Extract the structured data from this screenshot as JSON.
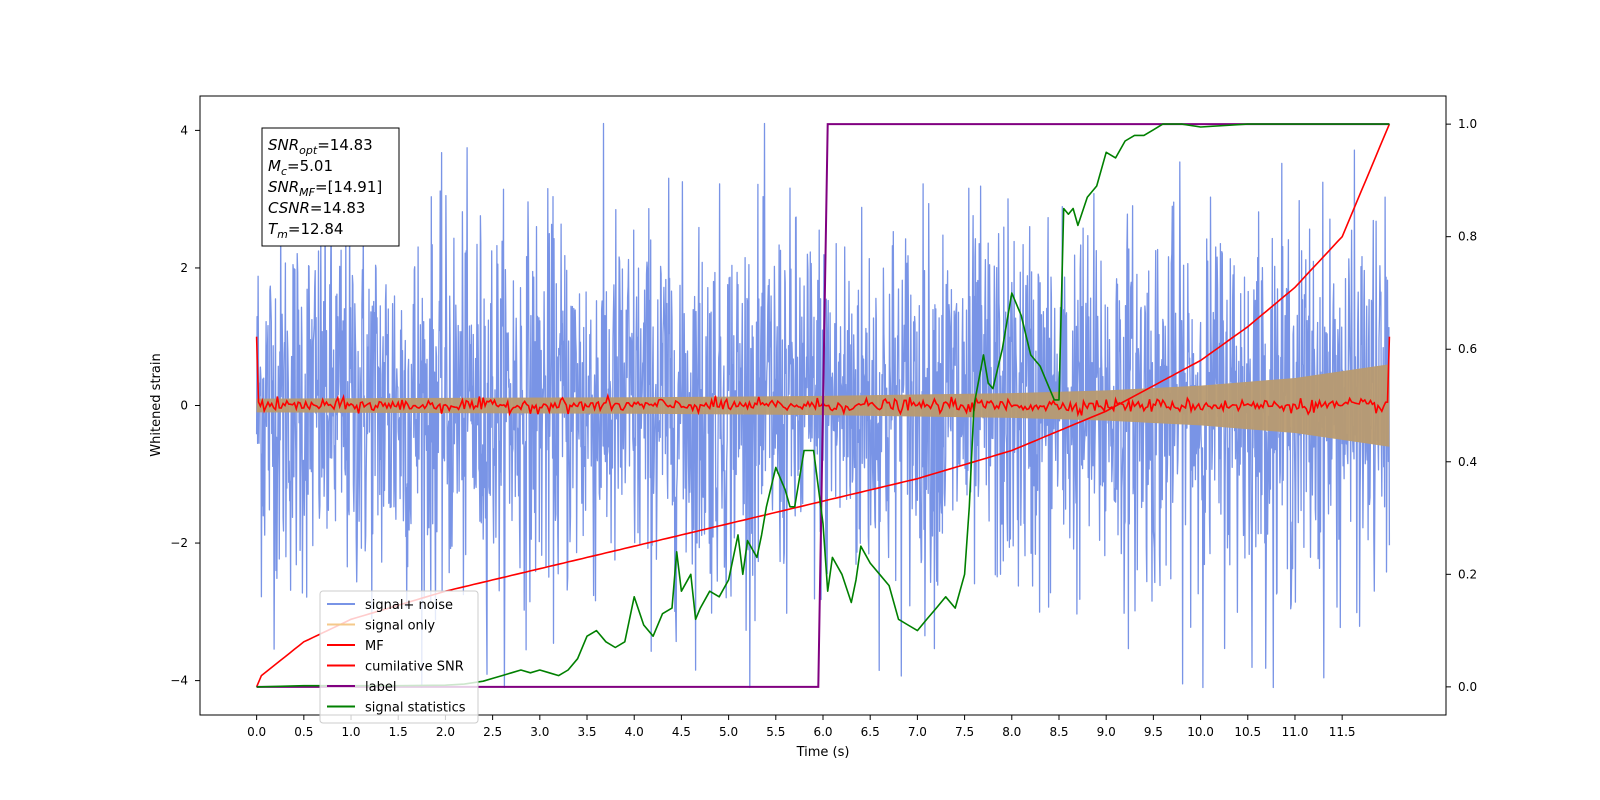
{
  "chart_data": {
    "type": "line",
    "xlabel": "Time (s)",
    "ylabel": "Whitened strain",
    "xlim": [
      -0.6,
      12.6
    ],
    "ylim": [
      -4.5,
      4.5
    ],
    "y2lim": [
      -0.05,
      1.05
    ],
    "x_ticks": [
      "0.0",
      "0.5",
      "1.0",
      "1.5",
      "2.0",
      "2.5",
      "3.0",
      "3.5",
      "4.0",
      "4.5",
      "5.0",
      "5.5",
      "6.0",
      "6.5",
      "7.0",
      "7.5",
      "8.0",
      "8.5",
      "9.0",
      "9.5",
      "10.0",
      "10.5",
      "11.0",
      "11.5"
    ],
    "y_ticks": [
      "4",
      "2",
      "0",
      "−2",
      "−4"
    ],
    "y2_ticks": [
      "1.0",
      "0.8",
      "0.6",
      "0.4",
      "0.2",
      "0.0"
    ],
    "annotation": [
      {
        "sym": "SNR",
        "sub": "opt",
        "val": "=14.83"
      },
      {
        "sym": "M",
        "sub": "c",
        "val": "=5.01"
      },
      {
        "sym": "SNR",
        "sub": "MF",
        "val": "=[14.91]"
      },
      {
        "sym": "CSNR",
        "sub": "",
        "val": "=14.83"
      },
      {
        "sym": "T",
        "sub": "m",
        "val": "=12.84"
      }
    ],
    "legend_position": "lower-left",
    "legend": [
      {
        "label": "signal+ noise",
        "color": "#7994e6"
      },
      {
        "label": "signal only",
        "color": "#f5c98a"
      },
      {
        "label": "MF",
        "color": "#ff0000"
      },
      {
        "label": "cumilative SNR",
        "color": "#ff0000"
      },
      {
        "label": "label",
        "color": "#800080"
      },
      {
        "label": "signal statistics",
        "color": "#008000"
      }
    ],
    "series": [
      {
        "name": "signal+ noise",
        "axis": "left",
        "color": "#7994e6",
        "x_range": [
          0,
          12
        ],
        "amplitude_range": [
          -4.1,
          4.1
        ],
        "description_points": 1200
      },
      {
        "name": "signal only",
        "axis": "left",
        "color": "#b89a70",
        "x_range": [
          0,
          12
        ],
        "envelope_x": [
          0,
          2,
          4,
          6,
          8,
          9,
          10,
          11,
          12
        ],
        "envelope_y": [
          0.1,
          0.11,
          0.12,
          0.14,
          0.18,
          0.22,
          0.29,
          0.4,
          0.6
        ]
      },
      {
        "name": "MF",
        "axis": "left",
        "color": "#ff0000",
        "x_range": [
          0,
          12
        ],
        "edge_value": 1.0,
        "noise_amplitude": 0.08
      },
      {
        "name": "cumilative SNR",
        "axis": "right",
        "color": "#ff0000",
        "x": [
          0,
          0.05,
          0.5,
          1,
          2,
          3,
          4,
          5,
          6,
          7,
          8,
          9,
          10,
          10.5,
          11,
          11.5,
          12
        ],
        "y": [
          0.0,
          0.02,
          0.08,
          0.12,
          0.17,
          0.21,
          0.25,
          0.29,
          0.33,
          0.37,
          0.42,
          0.49,
          0.58,
          0.64,
          0.71,
          0.8,
          1.0
        ]
      },
      {
        "name": "label",
        "axis": "right",
        "color": "#800080",
        "x": [
          0,
          5.95,
          6.05,
          12
        ],
        "y": [
          0.0,
          0.0,
          1.0,
          1.0
        ]
      },
      {
        "name": "signal statistics",
        "axis": "right",
        "color": "#008000",
        "x": [
          0,
          0.5,
          1,
          1.5,
          2,
          2.2,
          2.4,
          2.5,
          2.6,
          2.7,
          2.8,
          2.9,
          3.0,
          3.1,
          3.2,
          3.3,
          3.4,
          3.5,
          3.6,
          3.7,
          3.8,
          3.9,
          4.0,
          4.1,
          4.2,
          4.3,
          4.4,
          4.45,
          4.5,
          4.6,
          4.65,
          4.7,
          4.8,
          4.9,
          5.0,
          5.1,
          5.15,
          5.2,
          5.3,
          5.35,
          5.4,
          5.5,
          5.6,
          5.65,
          5.7,
          5.8,
          5.9,
          6.0,
          6.05,
          6.1,
          6.2,
          6.3,
          6.35,
          6.4,
          6.5,
          6.6,
          6.7,
          6.8,
          6.9,
          7.0,
          7.1,
          7.2,
          7.3,
          7.4,
          7.5,
          7.55,
          7.6,
          7.7,
          7.75,
          7.8,
          7.9,
          8.0,
          8.05,
          8.1,
          8.2,
          8.3,
          8.4,
          8.45,
          8.5,
          8.55,
          8.6,
          8.65,
          8.7,
          8.8,
          8.9,
          9.0,
          9.1,
          9.2,
          9.3,
          9.4,
          9.5,
          9.6,
          9.7,
          9.8,
          10.0,
          10.5,
          11.0,
          12.0
        ],
        "y": [
          0.0,
          0.002,
          0.002,
          0.002,
          0.003,
          0.005,
          0.01,
          0.015,
          0.02,
          0.025,
          0.03,
          0.025,
          0.03,
          0.025,
          0.02,
          0.03,
          0.05,
          0.09,
          0.1,
          0.08,
          0.07,
          0.08,
          0.16,
          0.11,
          0.09,
          0.13,
          0.14,
          0.24,
          0.17,
          0.2,
          0.12,
          0.14,
          0.17,
          0.16,
          0.19,
          0.27,
          0.2,
          0.26,
          0.23,
          0.27,
          0.32,
          0.39,
          0.35,
          0.32,
          0.32,
          0.42,
          0.42,
          0.29,
          0.17,
          0.23,
          0.2,
          0.15,
          0.19,
          0.25,
          0.22,
          0.2,
          0.18,
          0.12,
          0.11,
          0.1,
          0.12,
          0.14,
          0.16,
          0.14,
          0.2,
          0.32,
          0.5,
          0.59,
          0.54,
          0.53,
          0.6,
          0.7,
          0.68,
          0.66,
          0.59,
          0.57,
          0.53,
          0.51,
          0.51,
          0.85,
          0.84,
          0.85,
          0.82,
          0.87,
          0.89,
          0.95,
          0.94,
          0.97,
          0.98,
          0.98,
          0.99,
          1.0,
          1.0,
          1.0,
          0.995,
          1.0,
          1.0,
          1.0
        ]
      }
    ]
  }
}
